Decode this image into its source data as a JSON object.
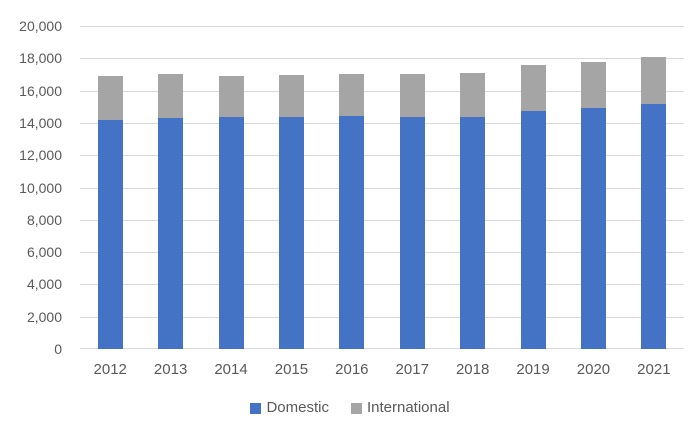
{
  "colors": {
    "background": "#FFFFFF",
    "gridline": "#D9D9D9",
    "axis_line": "#D9D9D9",
    "tick_text": "#595959",
    "domestic_blue": "#4472C4",
    "international_gray": "#A5A5A5"
  },
  "legend": {
    "domestic_label": "Domestic",
    "international_label": "International"
  },
  "chart_data": {
    "type": "bar",
    "stacked": true,
    "title": "",
    "xlabel": "",
    "ylabel": "",
    "grid": true,
    "legend_position": "bottom",
    "categories": [
      "2012",
      "2013",
      "2014",
      "2015",
      "2016",
      "2017",
      "2018",
      "2019",
      "2020",
      "2021"
    ],
    "series": [
      {
        "name": "Domestic",
        "color": "#4472C4",
        "values": [
          14200,
          14300,
          14350,
          14350,
          14450,
          14350,
          14350,
          14750,
          14900,
          15200
        ]
      },
      {
        "name": "International",
        "color": "#A5A5A5",
        "values": [
          2700,
          2700,
          2550,
          2600,
          2600,
          2650,
          2750,
          2850,
          2900,
          2900
        ]
      }
    ],
    "totals": [
      16900,
      17000,
      16900,
      16950,
      17050,
      17000,
      17100,
      17600,
      17800,
      18100
    ],
    "ylim": [
      0,
      20000
    ],
    "y_tick_step": 2000,
    "y_ticks": [
      {
        "label": "0",
        "value": 0
      },
      {
        "label": "2,000",
        "value": 2000
      },
      {
        "label": "4,000",
        "value": 4000
      },
      {
        "label": "6,000",
        "value": 6000
      },
      {
        "label": "8,000",
        "value": 8000
      },
      {
        "label": "10,000",
        "value": 10000
      },
      {
        "label": "12,000",
        "value": 12000
      },
      {
        "label": "14,000",
        "value": 14000
      },
      {
        "label": "16,000",
        "value": 16000
      },
      {
        "label": "18,000",
        "value": 18000
      },
      {
        "label": "20,000",
        "value": 20000
      }
    ]
  }
}
